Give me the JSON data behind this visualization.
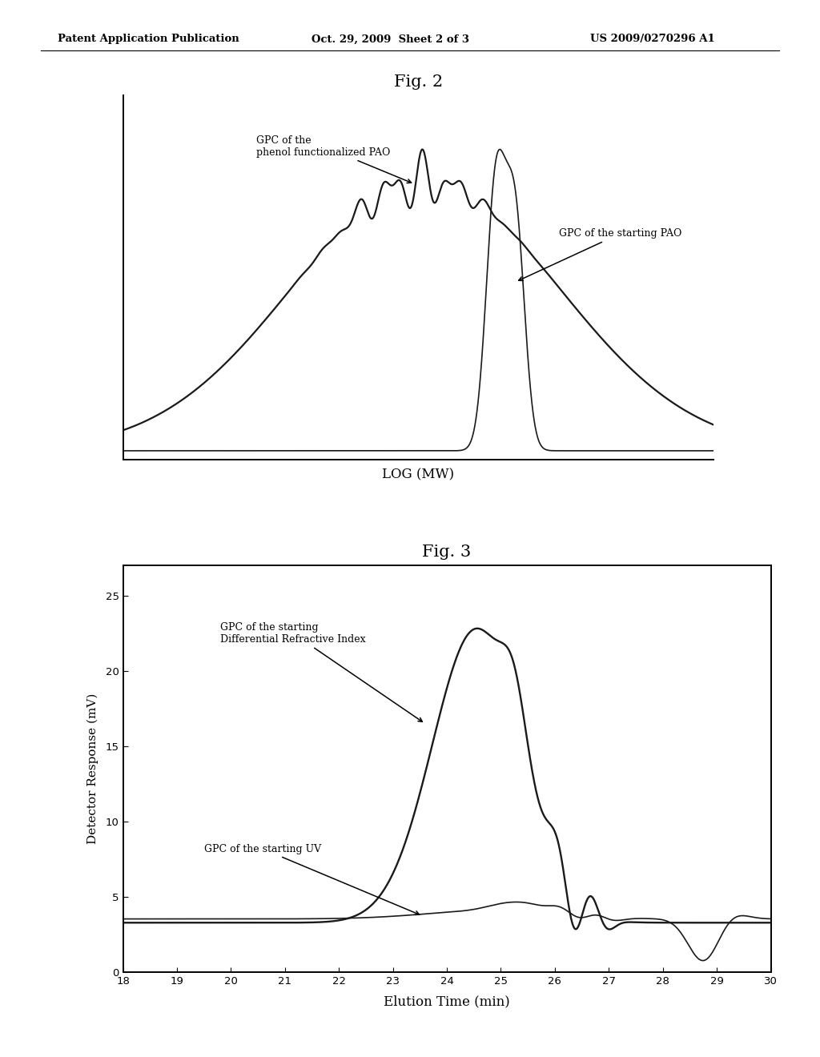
{
  "header_left": "Patent Application Publication",
  "header_center": "Oct. 29, 2009  Sheet 2 of 3",
  "header_right": "US 2009/0270296 A1",
  "fig2_title": "Fig. 2",
  "fig2_xlabel": "LOG (MW)",
  "fig2_annotation1": "GPC of the\nphenol functionalized PAO",
  "fig2_annotation2": "GPC of the starting PAO",
  "fig3_title": "Fig. 3",
  "fig3_xlabel": "Elution Time (min)",
  "fig3_ylabel": "Detector Response (mV)",
  "fig3_annotation1": "GPC of the starting\nDifferential Refractive Index",
  "fig3_annotation2": "GPC of the starting UV",
  "fig3_xlim": [
    18,
    30
  ],
  "fig3_ylim": [
    0,
    27
  ],
  "fig3_yticks": [
    0,
    5,
    10,
    15,
    20,
    25
  ],
  "fig3_xticks": [
    18,
    19,
    20,
    21,
    22,
    23,
    24,
    25,
    26,
    27,
    28,
    29,
    30
  ],
  "background_color": "#ffffff",
  "line_color": "#1a1a1a"
}
